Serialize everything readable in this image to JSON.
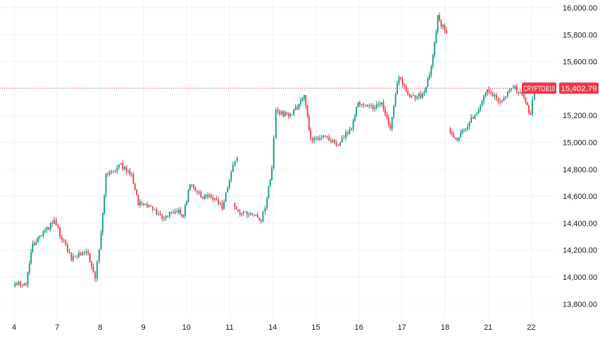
{
  "chart_data": {
    "type": "candlestick",
    "symbol": "CRYPTOB10",
    "last_price": 15402.79,
    "last_price_label": "15,402.79",
    "ylim": [
      13700,
      16060
    ],
    "y_ticks": [
      {
        "value": 16000,
        "label": "16,000.00"
      },
      {
        "value": 15800,
        "label": "15,800.00"
      },
      {
        "value": 15600,
        "label": "15,600.00"
      },
      {
        "value": 15400,
        "label": "15,400.00"
      },
      {
        "value": 15200,
        "label": "15,200.00"
      },
      {
        "value": 15000,
        "label": "15,000.00"
      },
      {
        "value": 14800,
        "label": "14,800.00"
      },
      {
        "value": 14600,
        "label": "14,600.00"
      },
      {
        "value": 14400,
        "label": "14,400.00"
      },
      {
        "value": 14200,
        "label": "14,200.00"
      },
      {
        "value": 14000,
        "label": "14,000.00"
      },
      {
        "value": 13800,
        "label": "13,800.00"
      }
    ],
    "x_ticks": [
      "4",
      "7",
      "8",
      "9",
      "10",
      "11",
      "14",
      "15",
      "16",
      "17",
      "18",
      "21",
      "22"
    ],
    "colors": {
      "up": "#089981",
      "down": "#f23645",
      "last_price": "#f23645"
    },
    "path_points": [
      {
        "x": 0.0,
        "y": 13930
      },
      {
        "x": 0.3,
        "y": 13960
      },
      {
        "x": 0.45,
        "y": 14240
      },
      {
        "x": 0.7,
        "y": 14330
      },
      {
        "x": 0.95,
        "y": 14420
      },
      {
        "x": 1.0,
        "y": 14380
      },
      {
        "x": 1.35,
        "y": 14130
      },
      {
        "x": 1.7,
        "y": 14200
      },
      {
        "x": 1.9,
        "y": 14000
      },
      {
        "x": 2.0,
        "y": 14200
      },
      {
        "x": 2.15,
        "y": 14750
      },
      {
        "x": 2.5,
        "y": 14830
      },
      {
        "x": 2.75,
        "y": 14760
      },
      {
        "x": 2.9,
        "y": 14550
      },
      {
        "x": 3.15,
        "y": 14530
      },
      {
        "x": 3.5,
        "y": 14440
      },
      {
        "x": 3.8,
        "y": 14500
      },
      {
        "x": 3.95,
        "y": 14460
      },
      {
        "x": 4.1,
        "y": 14690
      },
      {
        "x": 4.4,
        "y": 14580
      },
      {
        "x": 4.55,
        "y": 14620
      },
      {
        "x": 4.85,
        "y": 14520
      },
      {
        "x": 5.1,
        "y": 14830
      },
      {
        "x": 5.2,
        "y": 14890
      },
      {
        "gap": true
      },
      {
        "x": 5.1,
        "y": 14550
      },
      {
        "x": 5.3,
        "y": 14460
      },
      {
        "x": 5.55,
        "y": 14480
      },
      {
        "x": 5.75,
        "y": 14430
      },
      {
        "x": 5.85,
        "y": 14520
      },
      {
        "x": 6.0,
        "y": 14800
      },
      {
        "x": 6.1,
        "y": 15240
      },
      {
        "x": 6.35,
        "y": 15200
      },
      {
        "x": 6.55,
        "y": 15240
      },
      {
        "x": 6.75,
        "y": 15340
      },
      {
        "x": 6.9,
        "y": 15020
      },
      {
        "x": 7.2,
        "y": 15050
      },
      {
        "x": 7.5,
        "y": 14980
      },
      {
        "x": 7.85,
        "y": 15100
      },
      {
        "x": 8.0,
        "y": 15300
      },
      {
        "x": 8.35,
        "y": 15250
      },
      {
        "x": 8.55,
        "y": 15300
      },
      {
        "x": 8.75,
        "y": 15100
      },
      {
        "x": 8.95,
        "y": 15500
      },
      {
        "x": 9.2,
        "y": 15330
      },
      {
        "x": 9.5,
        "y": 15350
      },
      {
        "x": 9.7,
        "y": 15550
      },
      {
        "x": 9.85,
        "y": 15930
      },
      {
        "x": 10.05,
        "y": 15800
      },
      {
        "gap": true
      },
      {
        "x": 10.1,
        "y": 15100
      },
      {
        "x": 10.3,
        "y": 15020
      },
      {
        "x": 10.5,
        "y": 15110
      },
      {
        "x": 10.8,
        "y": 15250
      },
      {
        "x": 11.0,
        "y": 15380
      },
      {
        "x": 11.3,
        "y": 15300
      },
      {
        "x": 11.6,
        "y": 15420
      },
      {
        "x": 11.85,
        "y": 15330
      },
      {
        "x": 12.0,
        "y": 15200
      },
      {
        "x": 12.1,
        "y": 15402
      }
    ]
  }
}
